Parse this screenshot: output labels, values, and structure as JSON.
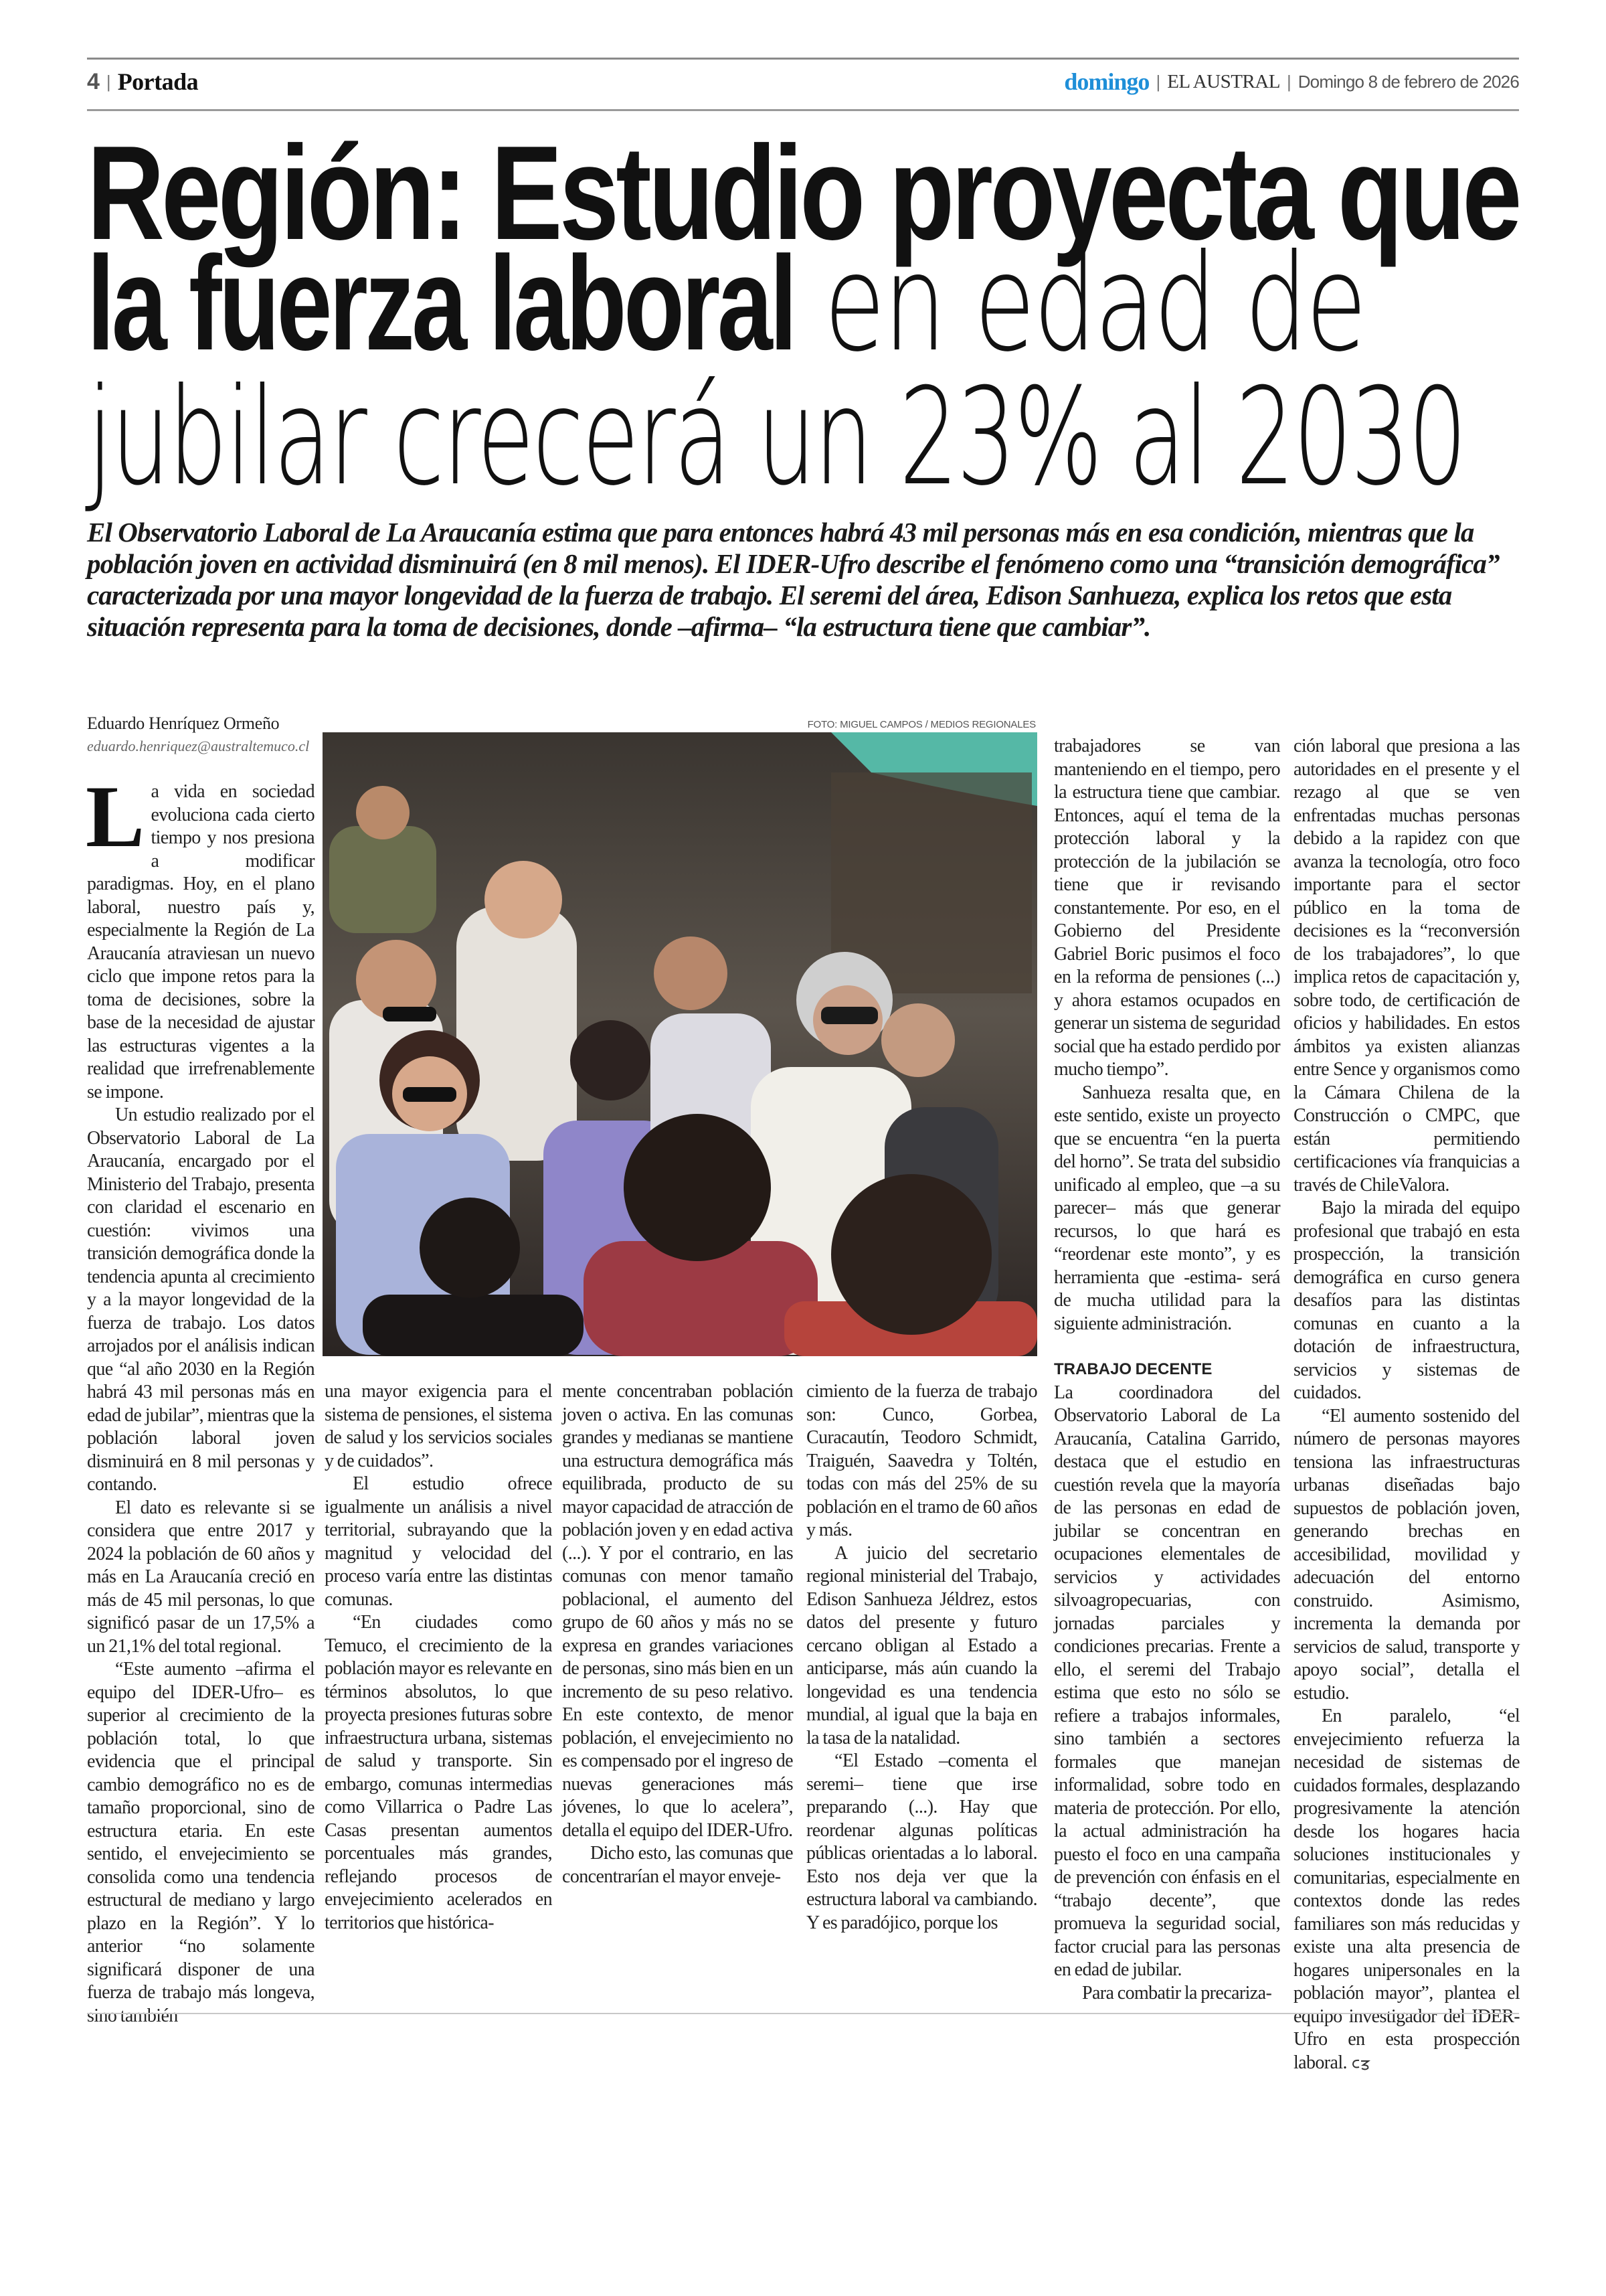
{
  "header": {
    "page_number": "4",
    "section": "Portada",
    "brand": "domingo",
    "newspaper": "EL AUSTRAL",
    "date": "Domingo 8 de febrero de 2026",
    "brand_color": "#1f8fd8"
  },
  "headline": {
    "line1_bold": "Región: Estudio proyecta que",
    "line2_bold": "la fuerza laboral",
    "line2_light": " en edad de",
    "line3_light": "jubilar crecerá un 23% al 2030"
  },
  "lead": "El Observatorio Laboral de La Araucanía estima que para entonces habrá 43 mil personas más en esa condición, mientras que la población joven en actividad disminuirá (en 8 mil menos). El IDER-Ufro describe el fenómeno como una “transición demográfica” caracterizada por una mayor longevidad de la fuerza de trabajo. El seremi del área, Edison Sanhueza, explica los retos que esta situación representa para la toma de decisiones, donde –afirma– “la estructura tiene que cambiar”.",
  "byline": {
    "name": "Eduardo Henríquez Ormeño",
    "email": "eduardo.henriquez@australtemuco.cl"
  },
  "photo": {
    "credit": "FOTO: MIGUEL CAMPOS / MEDIOS REGIONALES",
    "icon": "crowd-street-photo"
  },
  "columns": [
    {
      "drop_cap": "L",
      "paragraphs": [
        {
          "type": "first",
          "text": "a vida en sociedad evoluciona cada cierto tiempo y nos presiona a modificar paradigmas. Hoy, en el plano laboral, nuestro país y, especialmente la Región de La Araucanía atraviesan un nuevo ciclo que impone retos para la toma de decisiones, sobre la base de la necesidad de ajustar las estructuras vigentes a la realidad que irrefrenablemente se impone."
        },
        {
          "type": "indent",
          "text": "Un estudio realizado por el Observatorio Laboral de La Araucanía, encargado por el Ministerio del Trabajo, presenta con claridad el escenario en cuestión: vivimos una transición demográfica donde la tendencia apunta al crecimiento y a la mayor longevidad de la fuerza de trabajo. Los datos arrojados por el análisis indican que “al año 2030 en la Región habrá 43 mil personas más en edad de jubilar”, mientras que la población laboral joven disminuirá en 8 mil personas y contando."
        },
        {
          "type": "indent",
          "text": "El dato es relevante si se considera que entre 2017 y 2024 la población de 60 años y más en La Araucanía creció en más de 45 mil personas, lo que significó pasar de un 17,5% a un 21,1% del total regional."
        },
        {
          "type": "indent",
          "text": "“Este aumento –afirma el equipo del IDER-Ufro– es superior al crecimiento de la población total, lo que evidencia que el principal cambio demográfico no es de tamaño proporcional, sino de estructura etaria. En este sentido, el envejecimiento se consolida como una tendencia estructural de mediano y largo plazo en la Región”. Y lo anterior “no solamente significará disponer de una fuerza de trabajo más longeva, sino también"
        }
      ]
    },
    {
      "paragraphs": [
        {
          "type": "cont",
          "text": "una mayor exigencia para el sistema de pensiones, el sistema de salud y los servicios sociales y de cuidados”."
        },
        {
          "type": "indent",
          "text": "El estudio ofrece igualmente un análisis a nivel territorial, subrayando que la magnitud y velocidad del proceso varía entre las distintas comunas."
        },
        {
          "type": "indent",
          "text": "“En ciudades como Temuco, el crecimiento de la población mayor es relevante en términos absolutos, lo que proyecta presiones futuras sobre infraestructura urbana, sistemas de salud y transporte. Sin embargo, comunas intermedias como Villarrica o Padre Las Casas presentan aumentos porcentuales más grandes, reflejando procesos de envejecimiento acelerados en territorios que histórica-"
        }
      ]
    },
    {
      "paragraphs": [
        {
          "type": "cont",
          "text": "mente concentraban población joven o activa. En las comunas grandes y medianas se mantiene una estructura demográfica más equilibrada, producto de su mayor capacidad de atracción de población joven y en edad activa (...). Y por el contrario, en las comunas con menor tamaño poblacional, el aumento del grupo de 60 años y más no se expresa en grandes variaciones de personas, sino más bien en un incremento de su peso relativo. En este contexto, de menor población, el envejecimiento no es compensado por el ingreso de nuevas generaciones más jóvenes, lo que lo acelera”, detalla el equipo del IDER-Ufro."
        },
        {
          "type": "indent",
          "text": "Dicho esto, las comunas que concentrarían el mayor enveje-"
        }
      ]
    },
    {
      "paragraphs": [
        {
          "type": "cont",
          "text": "cimiento de la fuerza de trabajo son: Cunco, Gorbea, Curacautín, Teodoro Schmidt, Traiguén, Saavedra y Toltén, todas con más del 25% de su población en el tramo de 60 años y más."
        },
        {
          "type": "indent",
          "text": "A juicio del secretario regional ministerial del Trabajo, Edison Sanhueza Jéldrez, estos datos del presente y futuro cercano obligan al Estado a anticiparse, más aún cuando la longevidad es una tendencia mundial, al igual que la baja en la tasa de la natalidad."
        },
        {
          "type": "indent",
          "text": "“El Estado –comenta el seremi– tiene que irse preparando (...). Hay que reordenar algunas políticas públicas orientadas a lo laboral. Esto nos deja ver que la estructura laboral va cambiando. Y es paradójico, porque los"
        }
      ]
    },
    {
      "paragraphs": [
        {
          "type": "cont",
          "text": "trabajadores se van manteniendo en el tiempo, pero la estructura tiene que cambiar. Entonces, aquí el tema de la protección laboral y la protección de la jubilación se tiene que ir revisando constantemente. Por eso, en el Gobierno del Presidente Gabriel Boric pusimos el foco en la reforma de pensiones (...) y ahora estamos ocupados en generar un sistema de seguridad social que ha estado perdido por mucho tiempo”."
        },
        {
          "type": "indent",
          "text": "Sanhueza resalta que, en este sentido, existe un proyecto que se encuentra “en la puerta del horno”. Se trata del subsidio unificado al empleo, que –a su parecer– más que generar recursos, lo que hará es “reordenar este monto”, y es herramienta que -estima- será de mucha utilidad para la siguiente administración."
        },
        {
          "type": "subhead",
          "text": "TRABAJO DECENTE"
        },
        {
          "type": "cont",
          "text": "La coordinadora del Observatorio Laboral de La Araucanía, Catalina Garrido, destaca que el estudio en cuestión revela que la mayoría de las personas en edad de jubilar se concentran en ocupaciones elementales de servicios y actividades silvoagropecuarias, con jornadas parciales y condiciones precarias. Frente a ello, el seremi del Trabajo estima que esto no sólo se refiere a trabajos informales, sino también a sectores formales que manejan informalidad, sobre todo en materia de protección. Por ello, la actual administración ha puesto el foco en una campaña de prevención con énfasis en el “trabajo decente”, que promueva la seguridad social, factor crucial para las personas en edad de jubilar."
        },
        {
          "type": "indent",
          "text": "Para combatir la precariza-"
        }
      ]
    },
    {
      "paragraphs": [
        {
          "type": "cont",
          "text": "ción laboral que presiona a las autoridades en el presente y el rezago al que se ven enfrentadas muchas personas debido a la rapidez con que avanza la tecnología, otro foco importante para el sector público en la toma de decisiones es la “reconversión de los trabajadores”, lo que implica retos de capacitación y, sobre todo, de certificación de oficios y habilidades. En estos ámbitos ya existen alianzas entre Sence y organismos como la Cámara Chilena de la Construcción o CMPC, que están permitiendo certificaciones vía franquicias a través de ChileValora."
        },
        {
          "type": "indent",
          "text": "Bajo la mirada del equipo profesional que trabajó en esta prospección, la transición demográfica en curso genera desafíos para las distintas comunas en cuanto a la dotación de infraestructura, servicios y sistemas de cuidados."
        },
        {
          "type": "indent",
          "text": "“El aumento sostenido del número de personas mayores tensiona las infraestructuras urbanas diseñadas bajo supuestos de población joven, generando brechas en accesibilidad, movilidad y adecuación del entorno construido. Asimismo, incrementa la demanda por servicios de salud, transporte y apoyo social”, detalla el estudio."
        },
        {
          "type": "indent",
          "text": "En paralelo, “el envejecimiento refuerza la necesidad de sistemas de cuidados formales, desplazando progresivamente la atención desde los hogares hacia soluciones institucionales y comunitarias, especialmente en contextos donde las redes familiares son más reducidas y existe una alta presencia de hogares unipersonales en la población mayor”, plantea el equipo investigador del IDER-Ufro en esta prospección laboral.",
          "end_mark": "end-of-article-icon"
        }
      ]
    }
  ]
}
